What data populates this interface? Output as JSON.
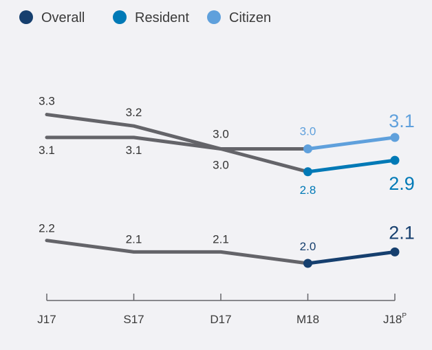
{
  "chart_data": {
    "type": "line",
    "categories": [
      "J17",
      "S17",
      "D17",
      "M18",
      "J18"
    ],
    "last_category_superscript": "P",
    "ylim": [
      1.5,
      3.6
    ],
    "legend_position": "top-left",
    "grid": false,
    "colors": {
      "history": "#646469",
      "overall": "#163f6e",
      "resident": "#0079b6",
      "citizen": "#5fa0dc",
      "label_dark": "#333333",
      "background": "#f2f2f5"
    },
    "series": [
      {
        "key": "citizen",
        "name": "Citizen",
        "values": [
          3.1,
          3.1,
          3.0,
          3.0,
          3.1
        ],
        "labels": [
          "3.1",
          "3.1",
          "",
          "3.0",
          "3.1"
        ]
      },
      {
        "key": "resident",
        "name": "Resident",
        "values": [
          3.3,
          3.2,
          3.0,
          2.8,
          2.9
        ],
        "labels": [
          "3.3",
          "3.2",
          "",
          "2.8",
          "2.9"
        ]
      },
      {
        "key": "overall",
        "name": "Overall",
        "values": [
          2.2,
          2.1,
          2.1,
          2.0,
          2.1
        ],
        "labels": [
          "2.2",
          "2.1",
          "2.1",
          "2.0",
          "2.1"
        ]
      }
    ],
    "shared_labels": [
      {
        "category": "D17",
        "text": "3.0",
        "position": "above"
      },
      {
        "category": "D17",
        "text": "3.0",
        "position": "below"
      }
    ],
    "legend": [
      {
        "key": "overall",
        "label": "Overall"
      },
      {
        "key": "resident",
        "label": "Resident"
      },
      {
        "key": "citizen",
        "label": "Citizen"
      }
    ]
  }
}
